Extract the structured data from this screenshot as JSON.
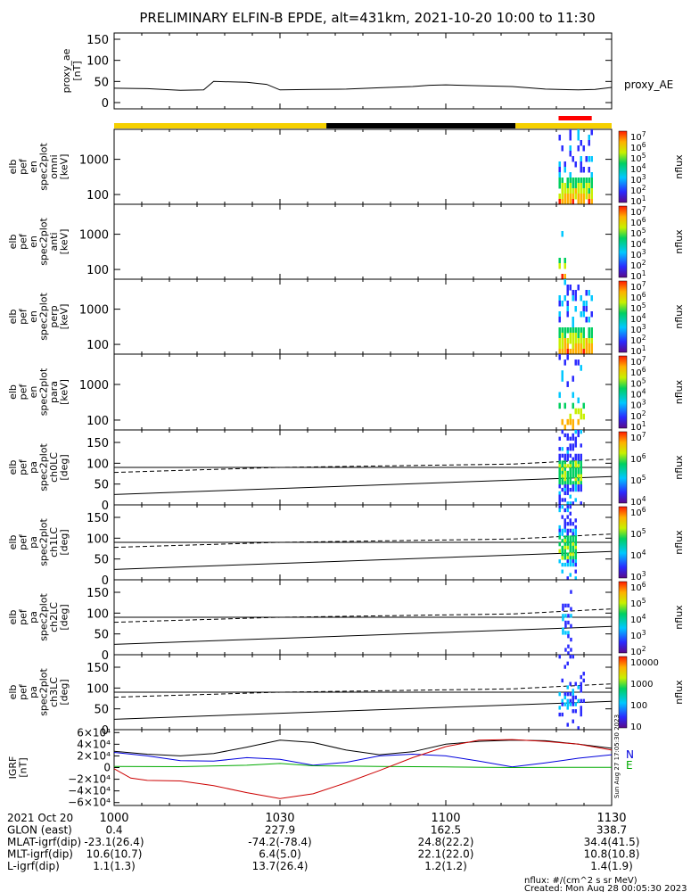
{
  "figure": {
    "title": "PRELIMINARY ELFIN-B EPDE, alt=431km, 2021-10-20 10:00 to 11:30",
    "footer_units": "nflux: #/(cm^2 s sr MeV)",
    "footer_created": "Created: Mon Aug 28 00:05:30 2023",
    "side_stamp": "Sun Aug 27 17:05:30 2023",
    "colors": {
      "sunlight": "#f5d000",
      "eclipse": "#000000",
      "science_zone": "#ff0000"
    }
  },
  "time_axis": {
    "ticks": [
      "1000",
      "1030",
      "1100",
      "1130"
    ],
    "tick_hours": [
      10.0,
      10.5,
      11.0,
      11.5
    ],
    "range": [
      10.0,
      11.5
    ]
  },
  "orbit_bar": [
    {
      "state": "sunlight",
      "from": 10.0,
      "to": 10.64
    },
    {
      "state": "eclipse",
      "from": 10.64,
      "to": 11.21
    },
    {
      "state": "sunlight",
      "from": 11.21,
      "to": 11.5
    }
  ],
  "science_zone_bar": {
    "from": 11.34,
    "to": 11.44
  },
  "ephemeris": {
    "rows": [
      {
        "label": "2021 Oct 20",
        "values": [
          "1000",
          "1030",
          "1100",
          "1130"
        ]
      },
      {
        "label": "GLON (east)",
        "values": [
          "0.4",
          "227.9",
          "162.5",
          "338.7"
        ]
      },
      {
        "label": "MLAT-igrf(dip)",
        "values": [
          "-23.1(26.4)",
          "-74.2(-78.4)",
          "24.8(22.2)",
          "34.4(41.5)"
        ]
      },
      {
        "label": "MLT-igrf(dip)",
        "values": [
          "10.6(10.7)",
          "6.4(5.0)",
          "22.1(22.0)",
          "10.8(10.8)"
        ]
      },
      {
        "label": "L-igrf(dip)",
        "values": [
          "1.1(1.3)",
          "13.7(26.4)",
          "1.2(1.2)",
          "1.4(1.9)"
        ]
      }
    ]
  },
  "chart_data": [
    {
      "type": "line",
      "ylabel": [
        "proxy_ae",
        "[nT]"
      ],
      "legend": "proxy_AE",
      "yticks": [
        "150",
        "100",
        "50",
        "0"
      ],
      "ylim": [
        0,
        150
      ],
      "series": [
        {
          "name": "proxy_AE",
          "x": [
            10.0,
            10.1,
            10.2,
            10.27,
            10.3,
            10.4,
            10.46,
            10.5,
            10.6,
            10.7,
            10.8,
            10.9,
            10.95,
            11.0,
            11.1,
            11.2,
            11.3,
            11.4,
            11.45,
            11.5
          ],
          "y": [
            34,
            33,
            29,
            30,
            50,
            48,
            43,
            30,
            31,
            32,
            35,
            38,
            41,
            42,
            40,
            38,
            32,
            30,
            31,
            36
          ]
        }
      ]
    },
    {
      "type": "heatmap",
      "ylabel": [
        "elb",
        "pef",
        "en",
        "spec2plot",
        "omni",
        "[keV]"
      ],
      "yticks": [
        "1000",
        "100"
      ],
      "scale": "log",
      "colorbar": {
        "label": "nflux",
        "ticks": [
          "10^7",
          "10^6",
          "10^5",
          "10^4",
          "10^3",
          "10^2",
          "10^1"
        ]
      },
      "data_window": [
        11.34,
        11.44
      ]
    },
    {
      "type": "heatmap",
      "ylabel": [
        "elb",
        "pef",
        "en",
        "spec2plot",
        "anti",
        "[keV]"
      ],
      "yticks": [
        "1000",
        "100"
      ],
      "scale": "log",
      "colorbar": {
        "label": "nflux",
        "ticks": [
          "10^7",
          "10^6",
          "10^5",
          "10^4",
          "10^3",
          "10^2",
          "10^1"
        ]
      },
      "data_window": [
        11.34,
        11.36
      ]
    },
    {
      "type": "heatmap",
      "ylabel": [
        "elb",
        "pef",
        "en",
        "spec2plot",
        "perp",
        "[keV]"
      ],
      "yticks": [
        "1000",
        "100"
      ],
      "scale": "log",
      "colorbar": {
        "label": "nflux",
        "ticks": [
          "10^7",
          "10^6",
          "10^5",
          "10^4",
          "10^3",
          "10^2",
          "10^1"
        ]
      },
      "data_window": [
        11.34,
        11.44
      ]
    },
    {
      "type": "heatmap",
      "ylabel": [
        "elb",
        "pef",
        "en",
        "spec2plot",
        "para",
        "[keV]"
      ],
      "yticks": [
        "1000",
        "100"
      ],
      "scale": "log",
      "colorbar": {
        "label": "nflux",
        "ticks": [
          "10^7",
          "10^6",
          "10^5",
          "10^4",
          "10^3",
          "10^2",
          "10^1"
        ]
      },
      "data_window": [
        11.34,
        11.42
      ]
    },
    {
      "type": "heatmap",
      "ylabel": [
        "elb",
        "pef",
        "pa",
        "spec2plot",
        "ch0LC",
        "[deg]"
      ],
      "yticks": [
        "150",
        "100",
        "50",
        "0"
      ],
      "ylim": [
        0,
        180
      ],
      "colorbar": {
        "label": "nflux",
        "ticks": [
          "10^7",
          "10^6",
          "10^5",
          "10^4"
        ]
      },
      "data_window": [
        11.34,
        11.41
      ]
    },
    {
      "type": "heatmap",
      "ylabel": [
        "elb",
        "pef",
        "pa",
        "spec2plot",
        "ch1LC",
        "[deg]"
      ],
      "yticks": [
        "150",
        "100",
        "50",
        "0"
      ],
      "ylim": [
        0,
        180
      ],
      "colorbar": {
        "label": "nflux",
        "ticks": [
          "10^6",
          "10^5",
          "10^4",
          "10^3"
        ]
      },
      "data_window": [
        11.34,
        11.39
      ]
    },
    {
      "type": "heatmap",
      "ylabel": [
        "elb",
        "pef",
        "pa",
        "spec2plot",
        "ch2LC",
        "[deg]"
      ],
      "yticks": [
        "150",
        "100",
        "50",
        "0"
      ],
      "ylim": [
        0,
        180
      ],
      "colorbar": {
        "label": "nflux",
        "ticks": [
          "10^6",
          "10^5",
          "10^4",
          "10^3",
          "10^2"
        ]
      },
      "data_window": [
        11.35,
        11.38
      ]
    },
    {
      "type": "heatmap",
      "ylabel": [
        "elb",
        "pef",
        "pa",
        "spec2plot",
        "ch3LC",
        "[deg]"
      ],
      "yticks": [
        "150",
        "100",
        "50",
        "0"
      ],
      "ylim": [
        0,
        180
      ],
      "colorbar": {
        "label": "nflux",
        "ticks": [
          "10000",
          "1000",
          "100",
          "10"
        ]
      },
      "data_window": [
        11.34,
        11.42
      ]
    },
    {
      "type": "line",
      "ylabel": [
        "IGRF",
        "[nT]"
      ],
      "yticks": [
        "6×10⁴",
        "4×10⁴",
        "2×10⁴",
        "0",
        "−2×10⁴",
        "−4×10⁴",
        "−6×10⁴"
      ],
      "ylim": [
        -65000,
        65000
      ],
      "legend": [
        "N",
        "E"
      ],
      "series": [
        {
          "name": "N",
          "color": "#0000dd",
          "x": [
            10.0,
            10.1,
            10.2,
            10.3,
            10.4,
            10.5,
            10.6,
            10.7,
            10.8,
            10.9,
            11.0,
            11.1,
            11.2,
            11.3,
            11.4,
            11.5
          ],
          "y": [
            26000,
            20000,
            12000,
            11000,
            17000,
            14000,
            4000,
            9000,
            20000,
            23000,
            20000,
            11000,
            1000,
            8000,
            16000,
            22000
          ]
        },
        {
          "name": "E",
          "color": "#00aa00",
          "x": [
            10.0,
            10.2,
            10.4,
            10.5,
            10.6,
            10.8,
            11.0,
            11.2,
            11.4,
            11.5
          ],
          "y": [
            2000,
            1500,
            4000,
            7000,
            3000,
            2000,
            1000,
            0,
            500,
            500
          ]
        },
        {
          "name": "",
          "color": "#000000",
          "x": [
            10.0,
            10.1,
            10.2,
            10.3,
            10.4,
            10.5,
            10.6,
            10.7,
            10.8,
            10.9,
            11.0,
            11.1,
            11.2,
            11.3,
            11.4,
            11.5
          ],
          "y": [
            28000,
            23000,
            20000,
            24000,
            35000,
            47000,
            43000,
            30000,
            22000,
            27000,
            40000,
            45000,
            47000,
            46000,
            40000,
            33000
          ]
        },
        {
          "name": "",
          "color": "#cc0000",
          "x": [
            10.0,
            10.05,
            10.1,
            10.2,
            10.3,
            10.4,
            10.5,
            10.6,
            10.7,
            10.8,
            10.9,
            11.0,
            11.1,
            11.2,
            11.3,
            11.4,
            11.5
          ],
          "y": [
            -2000,
            -18000,
            -22000,
            -23000,
            -31000,
            -43000,
            -53000,
            -45000,
            -26000,
            -5000,
            17000,
            36000,
            47000,
            48000,
            45000,
            40000,
            30000
          ]
        }
      ]
    }
  ]
}
